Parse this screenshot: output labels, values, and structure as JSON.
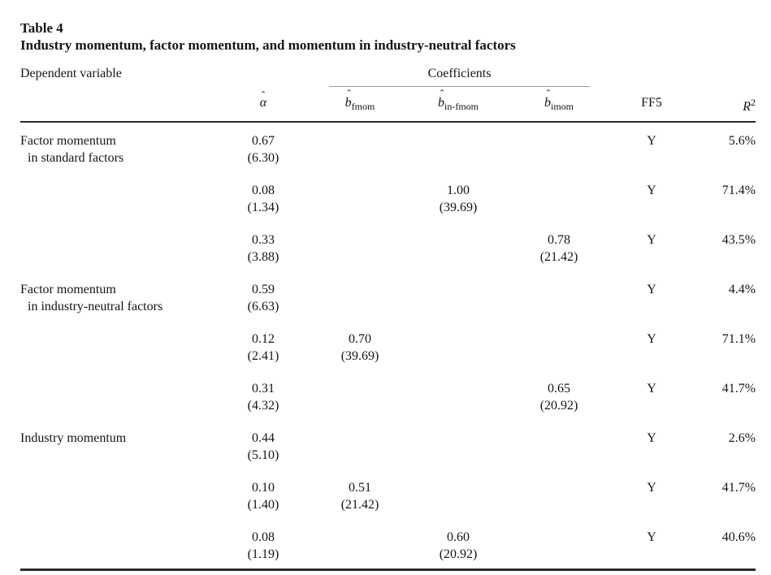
{
  "meta": {
    "background": "#ffffff",
    "text_color": "#151515",
    "rule_color": "#2a2a2a",
    "thin_rule_color": "#999999"
  },
  "table": {
    "label": "Table 4",
    "title": "Industry momentum, factor momentum, and momentum in industry-neutral factors",
    "header": {
      "dependent_variable": "Dependent variable",
      "coefficients": "Coefficients",
      "columns": [
        {
          "hat": "ˆ",
          "main": "α",
          "sub": "",
          "sup": ""
        },
        {
          "hat": "ˆ",
          "main": "b",
          "sub": "fmom",
          "sup": ""
        },
        {
          "hat": "ˆ",
          "main": "b",
          "sub": "in-fmom",
          "sup": ""
        },
        {
          "hat": "ˆ",
          "main": "b",
          "sub": "imom",
          "sup": ""
        },
        {
          "hat": "",
          "main": "FF5",
          "sub": "",
          "sup": ""
        },
        {
          "hat": "",
          "main": "R",
          "sub": "",
          "sup": "2"
        }
      ]
    },
    "rows": [
      {
        "label1": "Factor momentum",
        "label2": "in standard factors",
        "alpha": {
          "e": "0.67",
          "t": "(6.30)"
        },
        "bfmom": {
          "e": "",
          "t": ""
        },
        "binfmom": {
          "e": "",
          "t": ""
        },
        "bimom": {
          "e": "",
          "t": ""
        },
        "ff5": "Y",
        "r2": "5.6%"
      },
      {
        "label1": "",
        "label2": "",
        "alpha": {
          "e": "0.08",
          "t": "(1.34)"
        },
        "bfmom": {
          "e": "",
          "t": ""
        },
        "binfmom": {
          "e": "1.00",
          "t": "(39.69)"
        },
        "bimom": {
          "e": "",
          "t": ""
        },
        "ff5": "Y",
        "r2": "71.4%"
      },
      {
        "label1": "",
        "label2": "",
        "alpha": {
          "e": "0.33",
          "t": "(3.88)"
        },
        "bfmom": {
          "e": "",
          "t": ""
        },
        "binfmom": {
          "e": "",
          "t": ""
        },
        "bimom": {
          "e": "0.78",
          "t": "(21.42)"
        },
        "ff5": "Y",
        "r2": "43.5%"
      },
      {
        "label1": "Factor momentum",
        "label2": "in industry-neutral factors",
        "alpha": {
          "e": "0.59",
          "t": "(6.63)"
        },
        "bfmom": {
          "e": "",
          "t": ""
        },
        "binfmom": {
          "e": "",
          "t": ""
        },
        "bimom": {
          "e": "",
          "t": ""
        },
        "ff5": "Y",
        "r2": "4.4%"
      },
      {
        "label1": "",
        "label2": "",
        "alpha": {
          "e": "0.12",
          "t": "(2.41)"
        },
        "bfmom": {
          "e": "0.70",
          "t": "(39.69)"
        },
        "binfmom": {
          "e": "",
          "t": ""
        },
        "bimom": {
          "e": "",
          "t": ""
        },
        "ff5": "Y",
        "r2": "71.1%"
      },
      {
        "label1": "",
        "label2": "",
        "alpha": {
          "e": "0.31",
          "t": "(4.32)"
        },
        "bfmom": {
          "e": "",
          "t": ""
        },
        "binfmom": {
          "e": "",
          "t": ""
        },
        "bimom": {
          "e": "0.65",
          "t": "(20.92)"
        },
        "ff5": "Y",
        "r2": "41.7%"
      },
      {
        "label1": "Industry momentum",
        "label2": "",
        "alpha": {
          "e": "0.44",
          "t": "(5.10)"
        },
        "bfmom": {
          "e": "",
          "t": ""
        },
        "binfmom": {
          "e": "",
          "t": ""
        },
        "bimom": {
          "e": "",
          "t": ""
        },
        "ff5": "Y",
        "r2": "2.6%"
      },
      {
        "label1": "",
        "label2": "",
        "alpha": {
          "e": "0.10",
          "t": "(1.40)"
        },
        "bfmom": {
          "e": "0.51",
          "t": "(21.42)"
        },
        "binfmom": {
          "e": "",
          "t": ""
        },
        "bimom": {
          "e": "",
          "t": ""
        },
        "ff5": "Y",
        "r2": "41.7%"
      },
      {
        "label1": "",
        "label2": "",
        "alpha": {
          "e": "0.08",
          "t": "(1.19)"
        },
        "bfmom": {
          "e": "",
          "t": ""
        },
        "binfmom": {
          "e": "0.60",
          "t": "(20.92)"
        },
        "bimom": {
          "e": "",
          "t": ""
        },
        "ff5": "Y",
        "r2": "40.6%"
      }
    ]
  }
}
